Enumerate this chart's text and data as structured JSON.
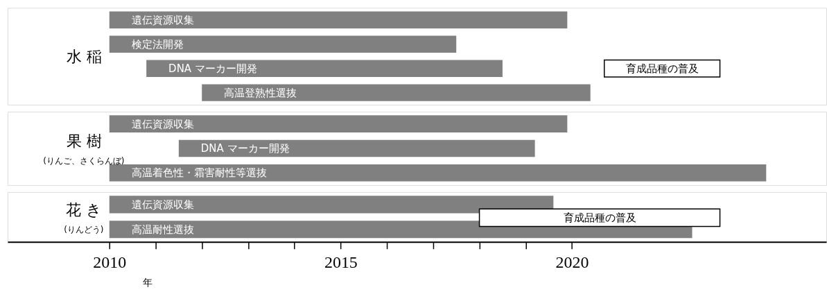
{
  "chart_data": [
    {
      "type": "bar",
      "orientation": "horizontal",
      "ylabel": "水 稲",
      "categories": [
        "遺伝資源収集",
        "検定法開発",
        "DNA マーカー開発",
        "高温登熟性選抜"
      ],
      "series": [
        {
          "color": "#808080",
          "values": [
            9.9,
            7.5,
            7.7,
            8.4
          ],
          "base": [
            2010,
            2010,
            2010.8,
            2012
          ]
        },
        {
          "name": "育成品種の普及",
          "color": "#ffffff",
          "values": [
            null,
            null,
            2.5,
            null
          ],
          "base": [
            null,
            null,
            2020.7,
            null
          ]
        }
      ],
      "xlim": [
        2007.8,
        2025.5
      ],
      "tick_labels": false
    },
    {
      "type": "bar",
      "orientation": "horizontal",
      "ylabel": "果 樹",
      "annotations": [
        "(りんご、さくらんぼ)"
      ],
      "categories": [
        "遺伝資源収集",
        "DNA マーカー開発",
        "高温着色性・霜害耐性等選抜"
      ],
      "series": [
        {
          "color": "#808080",
          "values": [
            9.9,
            7.7,
            14.2
          ],
          "base": [
            2010,
            2011.5,
            2010
          ]
        }
      ],
      "xlim": [
        2007.8,
        2025.5
      ],
      "tick_labels": false
    },
    {
      "type": "bar",
      "orientation": "horizontal",
      "ylabel": "花 き",
      "annotations": [
        "(りんどう)"
      ],
      "xlabel": "年",
      "categories": [
        "遺伝資源収集",
        "高温耐性選抜"
      ],
      "series": [
        {
          "color": "#808080",
          "values": [
            9.6,
            12.6
          ],
          "base": [
            2010,
            2010
          ]
        },
        {
          "name": "育成品種の普及",
          "color": "#ffffff",
          "values": [
            null,
            5.2
          ],
          "base": [
            null,
            2018
          ]
        }
      ],
      "xlim": [
        2007.8,
        2025.5
      ],
      "xticks": [
        2010,
        {
          "value": 2011,
          "label": null
        },
        {
          "value": 2012,
          "label": null
        },
        {
          "value": 2013,
          "label": null
        },
        {
          "value": 2014,
          "label": null
        },
        2015,
        {
          "value": 2016,
          "label": null
        },
        {
          "value": 2017,
          "label": null
        },
        {
          "value": 2018,
          "label": null
        },
        {
          "value": 2019,
          "label": null
        },
        2020
      ],
      "tick_labels": "x"
    }
  ]
}
